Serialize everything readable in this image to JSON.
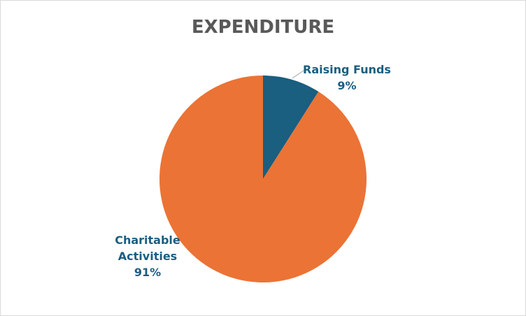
{
  "chart_data": {
    "type": "pie",
    "title": "EXPENDITURE",
    "slices": [
      {
        "name": "Raising Funds",
        "label_lines": [
          "Raising Funds"
        ],
        "percent_label": "9%",
        "value": 9,
        "color": "#1a5e80",
        "label_color": "#1a5e80"
      },
      {
        "name": "Charitable Activities",
        "label_lines": [
          "Charitable",
          "Activities"
        ],
        "percent_label": "91%",
        "value": 91,
        "color": "#eb7335",
        "label_color": "#1a5e80"
      }
    ],
    "start_angle_deg": 0,
    "direction": "clockwise",
    "legend": "none"
  },
  "colors": {
    "border": "#d9d9d9",
    "title": "#595959",
    "leader_line": "#a6a6a6"
  }
}
